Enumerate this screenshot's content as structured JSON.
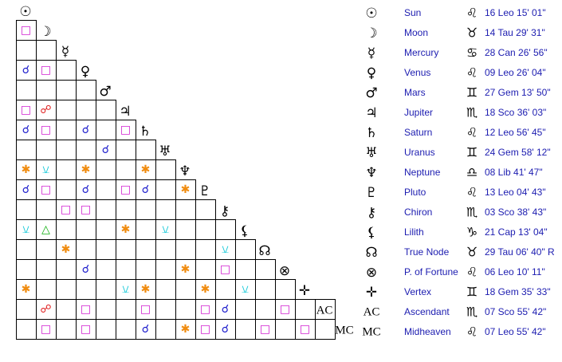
{
  "planets": [
    {
      "glyph": "☉",
      "name": "Sun",
      "sign": "♌",
      "position": "16 Leo 15' 01\""
    },
    {
      "glyph": "☽",
      "name": "Moon",
      "sign": "♉",
      "position": "14 Tau 29' 31\""
    },
    {
      "glyph": "☿",
      "name": "Mercury",
      "sign": "♋",
      "position": "28 Can 26' 56\""
    },
    {
      "glyph": "♀",
      "name": "Venus",
      "sign": "♌",
      "position": "09 Leo 26' 04\""
    },
    {
      "glyph": "♂",
      "name": "Mars",
      "sign": "♊",
      "position": "27 Gem 13' 50\""
    },
    {
      "glyph": "♃",
      "name": "Jupiter",
      "sign": "♏",
      "position": "18 Sco 36' 03\""
    },
    {
      "glyph": "♄",
      "name": "Saturn",
      "sign": "♌",
      "position": "12 Leo 56' 45\""
    },
    {
      "glyph": "♅",
      "name": "Uranus",
      "sign": "♊",
      "position": "24 Gem 58' 12\""
    },
    {
      "glyph": "♆",
      "name": "Neptune",
      "sign": "♎",
      "position": "08 Lib 41' 47\""
    },
    {
      "glyph": "♇",
      "name": "Pluto",
      "sign": "♌",
      "position": "13 Leo 04' 43\""
    },
    {
      "glyph": "⚷",
      "name": "Chiron",
      "sign": "♏",
      "position": "03 Sco 38' 43\""
    },
    {
      "glyph": "⚸",
      "name": "Lilith",
      "sign": "♑",
      "position": "21 Cap 13' 04\""
    },
    {
      "glyph": "☊",
      "name": "True Node",
      "sign": "♉",
      "position": "29 Tau 06' 40\" R"
    },
    {
      "glyph": "⊗",
      "name": "P. of Fortune",
      "sign": "♌",
      "position": "06 Leo 10' 11\""
    },
    {
      "glyph": "✛",
      "name": "Vertex",
      "sign": "♊",
      "position": "18 Gem 35' 33\""
    },
    {
      "glyph": "AC",
      "name": "Ascendant",
      "sign": "♏",
      "position": "07 Sco 55' 42\""
    },
    {
      "glyph": "MC",
      "name": "Midheaven",
      "sign": "♌",
      "position": "07 Leo 55' 42\""
    }
  ],
  "grid": [
    [],
    [
      "□"
    ],
    [
      null,
      null
    ],
    [
      "☌",
      "□",
      null
    ],
    [
      null,
      null,
      null,
      null
    ],
    [
      "□",
      "☍",
      null,
      null,
      null
    ],
    [
      "☌",
      "□",
      null,
      "☌",
      null,
      "□"
    ],
    [
      null,
      null,
      null,
      null,
      "☌",
      null,
      null
    ],
    [
      "✱",
      "⚺",
      null,
      "✱",
      null,
      null,
      "✱",
      null
    ],
    [
      "☌",
      "□",
      null,
      "☌",
      null,
      "□",
      "☌",
      null,
      "✱"
    ],
    [
      null,
      null,
      "□",
      "□",
      null,
      null,
      null,
      null,
      null,
      null
    ],
    [
      "⚺",
      "△",
      null,
      null,
      null,
      "✱",
      null,
      "⚺",
      null,
      null,
      null
    ],
    [
      null,
      null,
      "✱",
      null,
      null,
      null,
      null,
      null,
      null,
      null,
      "⚺",
      null
    ],
    [
      null,
      null,
      null,
      "☌",
      null,
      null,
      null,
      null,
      "✱",
      null,
      "□",
      null,
      null
    ],
    [
      "✱",
      null,
      null,
      null,
      null,
      "⚺",
      "✱",
      null,
      null,
      "✱",
      null,
      "⚺",
      null,
      null
    ],
    [
      null,
      "☍",
      null,
      "□",
      null,
      null,
      "□",
      null,
      null,
      "□",
      "☌",
      null,
      null,
      "□",
      null,
      null
    ],
    [
      null,
      "□",
      null,
      "□",
      null,
      null,
      "☌",
      null,
      "✱",
      "□",
      "☌",
      null,
      "□",
      null,
      "□",
      null
    ]
  ],
  "aspect_colors": {
    "☌": "#1c1ccc",
    "□": "#d020d0",
    "☍": "#e02020",
    "△": "#10b010",
    "✱": "#f08c10",
    "⚺": "#10c8d8"
  }
}
